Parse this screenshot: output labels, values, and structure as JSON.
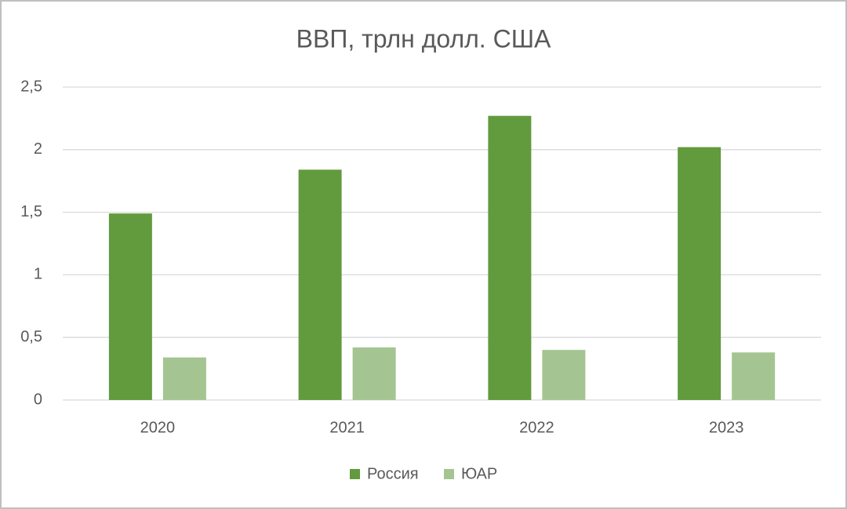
{
  "chart_data": {
    "type": "bar",
    "title": "ВВП, трлн долл. США",
    "categories": [
      "2020",
      "2021",
      "2022",
      "2023"
    ],
    "series": [
      {
        "name": "Россия",
        "color": "#629a3e",
        "values": [
          1.49,
          1.84,
          2.27,
          2.02
        ]
      },
      {
        "name": "ЮАР",
        "color": "#a4c591",
        "values": [
          0.34,
          0.42,
          0.4,
          0.38
        ]
      }
    ],
    "ylim": [
      0,
      2.5
    ],
    "yticks": [
      0,
      {
        "value": 0.5,
        "label": "0,5"
      },
      1,
      {
        "value": 1.5,
        "label": "1,5"
      },
      2,
      {
        "value": 2.5,
        "label": "2,5"
      }
    ],
    "grid": true,
    "legend": "bottom"
  }
}
